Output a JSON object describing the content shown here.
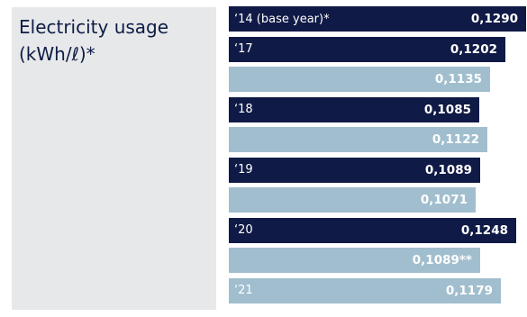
{
  "title": "Electricity usage\n(kWh/ℓ)*",
  "colors": {
    "dark": "#101a46",
    "light": "#a1bece",
    "panel": "#e7e8ea",
    "title": "#0d1c45"
  },
  "chart_data": {
    "type": "bar",
    "orientation": "horizontal",
    "title": "Electricity usage (kWh/ℓ)*",
    "xlim": [
      0,
      0.129
    ],
    "bars": [
      {
        "category": "‘14 (base year)*",
        "value": 0.129,
        "value_label": "0,1290",
        "style": "dark"
      },
      {
        "category": "‘17",
        "value": 0.1202,
        "value_label": "0,1202",
        "style": "dark"
      },
      {
        "category": "",
        "value": 0.1135,
        "value_label": "0,1135",
        "style": "light"
      },
      {
        "category": "‘18",
        "value": 0.1085,
        "value_label": "0,1085",
        "style": "dark"
      },
      {
        "category": "",
        "value": 0.1122,
        "value_label": "0,1122",
        "style": "light"
      },
      {
        "category": "‘19",
        "value": 0.1089,
        "value_label": "0,1089",
        "style": "dark"
      },
      {
        "category": "",
        "value": 0.1071,
        "value_label": "0,1071",
        "style": "light"
      },
      {
        "category": "‘20",
        "value": 0.1248,
        "value_label": "0,1248",
        "style": "dark"
      },
      {
        "category": "",
        "value": 0.1089,
        "value_label": "0,1089**",
        "style": "light"
      },
      {
        "category": "‘21",
        "value": 0.1179,
        "value_label": "0,1179",
        "style": "light"
      }
    ]
  }
}
